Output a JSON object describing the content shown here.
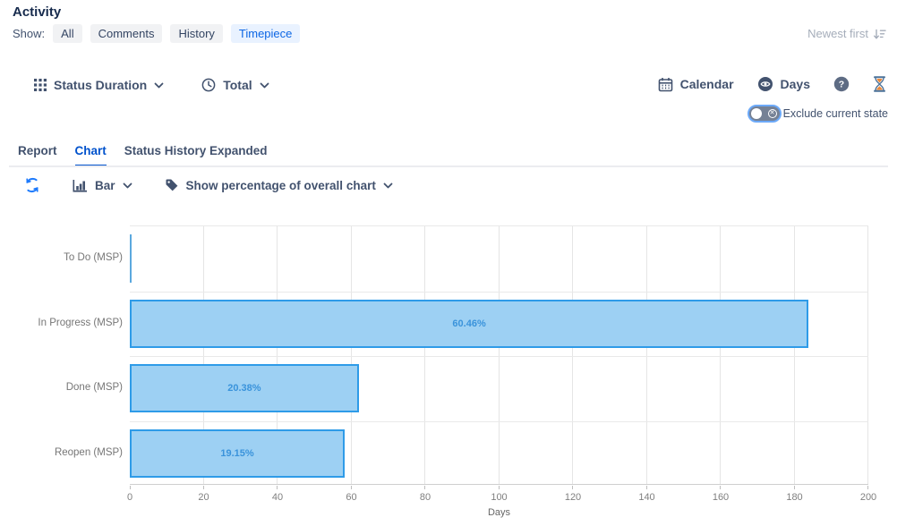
{
  "header": {
    "title": "Activity",
    "show_label": "Show:",
    "filters": [
      "All",
      "Comments",
      "History",
      "Timepiece"
    ],
    "active_filter": "Timepiece",
    "sort_label": "Newest first"
  },
  "toolbar": {
    "dimension_label": "Status Duration",
    "aggregation_label": "Total",
    "calendar_label": "Calendar",
    "unit_label": "Days",
    "exclude_toggle_label": "Exclude current state"
  },
  "tabs": {
    "items": [
      "Report",
      "Chart",
      "Status History Expanded"
    ],
    "active": "Chart"
  },
  "chart_controls": {
    "type_label": "Bar",
    "percentage_label": "Show percentage of overall chart"
  },
  "chart_data": {
    "type": "bar",
    "orientation": "horizontal",
    "categories": [
      "To Do (MSP)",
      "In Progress (MSP)",
      "Done (MSP)",
      "Reopen (MSP)"
    ],
    "values_days": [
      0.1,
      183.8,
      62,
      58.2
    ],
    "bar_labels": [
      "",
      "60.46%",
      "20.38%",
      "19.15%"
    ],
    "xlabel": "Days",
    "xlim": [
      0,
      200
    ],
    "x_ticks": [
      0,
      20,
      40,
      60,
      80,
      100,
      120,
      140,
      160,
      180,
      200
    ],
    "grid": true,
    "legend": "none"
  },
  "colors": {
    "accent_blue": "#1D7AFC",
    "active_tab_blue": "#0052CC",
    "chip_bg": "#F1F2F4",
    "chip_active_bg": "#E9F2FF",
    "chip_active_text": "#0C66E4",
    "toolbar_text": "#42526E",
    "bar_fill": "#9DD0F3",
    "bar_border": "#2E9BE8",
    "bar_label_text": "#3A93DB",
    "muted_text": "#A5ADBA",
    "axis_text": "#7F7F7F"
  }
}
